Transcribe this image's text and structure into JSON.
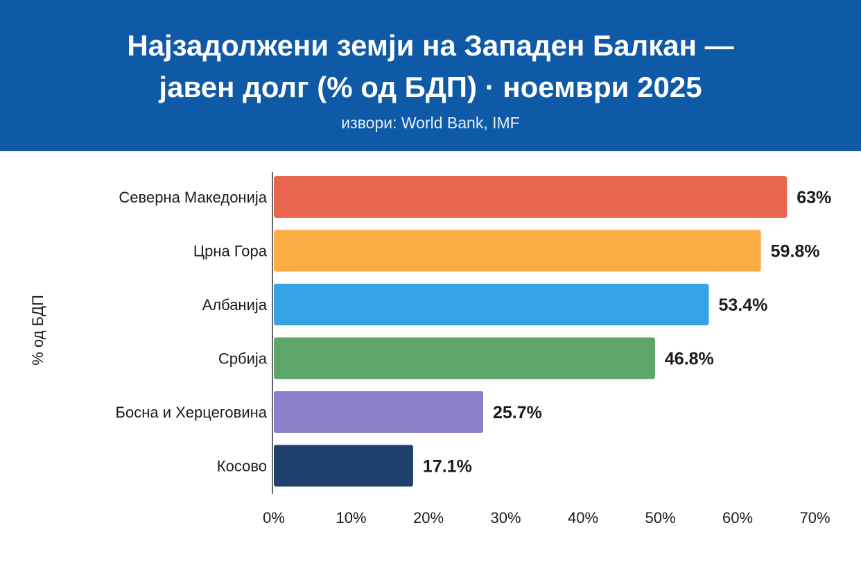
{
  "header": {
    "title_line1": "Најзадолжени земји на Западен Балкан —",
    "title_line2": "јавен долг (% од БДП) · ноември 2025",
    "source": "извори: World Bank, IMF",
    "background": "#0f5aa6"
  },
  "chart_data": {
    "type": "bar",
    "orientation": "horizontal",
    "categories": [
      "Северна Македонија",
      "Црна Гора",
      "Албанија",
      "Србија",
      "Босна и Херцеговина",
      "Косово"
    ],
    "values": [
      63,
      59.8,
      53.4,
      46.8,
      25.7,
      17.1
    ],
    "value_labels": [
      "63%",
      "59.8%",
      "53.4%",
      "46.8%",
      "25.7%",
      "17.1%"
    ],
    "colors": [
      "#e8664e",
      "#fbad44",
      "#35a3e6",
      "#5ea56a",
      "#8c7fc9",
      "#1f3f6d"
    ],
    "ylabel": "% од БДП",
    "xlim": [
      0,
      70
    ],
    "xticks": [
      "0%",
      "10%",
      "20%",
      "30%",
      "40%",
      "50%",
      "60%",
      "70%"
    ],
    "grid": false,
    "legend": "none"
  }
}
